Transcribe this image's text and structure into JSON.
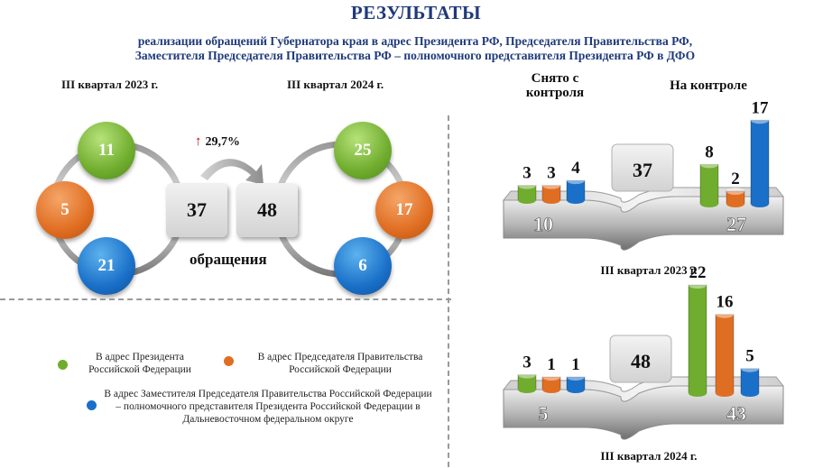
{
  "title": "РЕЗУЛЬТАТЫ",
  "subtitle_line1": "реализации обращений Губернатора края в адрес Президента РФ, Председателя Правительства РФ,",
  "subtitle_line2": "Заместителя Председателя Правительства РФ – полномочного представителя Президента РФ в ДФО",
  "colors": {
    "green": "#70ad2e",
    "orange": "#e06e22",
    "blue": "#1a70c8",
    "title": "#1f3a7a"
  },
  "left_panel": {
    "q2023_label": "III квартал 2023 г.",
    "q2024_label": "III квартал 2024 г.",
    "q2023": {
      "green": "11",
      "orange": "5",
      "blue": "21",
      "total": "37"
    },
    "q2024": {
      "green": "25",
      "orange": "17",
      "blue": "6",
      "total": "48"
    },
    "growth": "29,7%",
    "caption": "обращения"
  },
  "legend": [
    {
      "text": "В адрес Президента Российской Федерации",
      "color": "#70ad2e",
      "icon": "green-dot"
    },
    {
      "text": "В адрес Председателя Правительства Российской Федерации",
      "color": "#e06e22",
      "icon": "orange-dot"
    },
    {
      "text": "В адрес Заместителя Председателя Правительства Российской Федерации – полномочного представителя Президента Российской Федерации в Дальневосточном федеральном округе",
      "color": "#1a70c8",
      "icon": "blue-dot"
    }
  ],
  "right_panel": {
    "header_removed": "Снято с контроля",
    "header_control": "На контроле"
  },
  "chart_data": [
    {
      "type": "bar",
      "title": "III квартал 2023 г.",
      "total": 37,
      "groups": [
        {
          "name": "Снято с контроля",
          "total": 10,
          "values": [
            3,
            3,
            4
          ]
        },
        {
          "name": "На контроле",
          "total": 27,
          "values": [
            8,
            2,
            17
          ]
        }
      ],
      "series_colors": [
        "#70ad2e",
        "#e06e22",
        "#1a70c8"
      ]
    },
    {
      "type": "bar",
      "title": "III квартал 2024 г.",
      "total": 48,
      "groups": [
        {
          "name": "Снято с контроля",
          "total": 5,
          "values": [
            3,
            1,
            1
          ]
        },
        {
          "name": "На контроле",
          "total": 43,
          "values": [
            22,
            16,
            5
          ]
        }
      ],
      "series_colors": [
        "#70ad2e",
        "#e06e22",
        "#1a70c8"
      ]
    }
  ]
}
